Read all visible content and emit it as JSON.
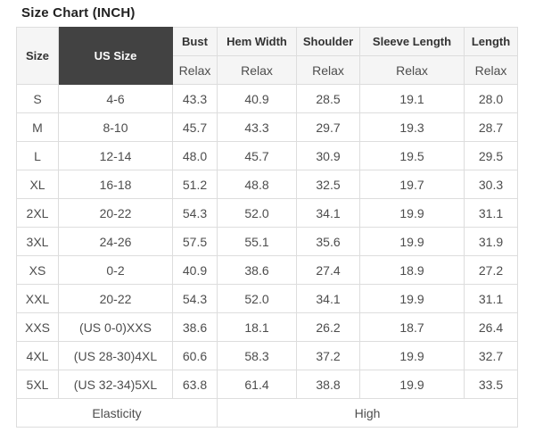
{
  "title": "Size Chart (INCH)",
  "colors": {
    "header_bg": "#f5f5f5",
    "dark_cell_bg": "#424242",
    "dark_cell_text": "#ffffff",
    "border": "#dddddd",
    "header_text": "#333333",
    "body_text": "#4d4d4d",
    "title_text": "#222222",
    "page_bg": "#ffffff"
  },
  "table": {
    "columns": [
      "Size",
      "US Size",
      "Bust",
      "Hem Width",
      "Shoulder",
      "Sleeve Length",
      "Length"
    ],
    "column_keys": [
      "size",
      "us_size",
      "bust",
      "hem_width",
      "shoulder",
      "sleeve_length",
      "length"
    ],
    "fit_row": [
      "Relax",
      "Relax",
      "Relax",
      "Relax",
      "Relax"
    ],
    "rows": [
      {
        "size": "S",
        "us_size": "4-6",
        "bust": "43.3",
        "hem_width": "40.9",
        "shoulder": "28.5",
        "sleeve_length": "19.1",
        "length": "28.0"
      },
      {
        "size": "M",
        "us_size": "8-10",
        "bust": "45.7",
        "hem_width": "43.3",
        "shoulder": "29.7",
        "sleeve_length": "19.3",
        "length": "28.7"
      },
      {
        "size": "L",
        "us_size": "12-14",
        "bust": "48.0",
        "hem_width": "45.7",
        "shoulder": "30.9",
        "sleeve_length": "19.5",
        "length": "29.5"
      },
      {
        "size": "XL",
        "us_size": "16-18",
        "bust": "51.2",
        "hem_width": "48.8",
        "shoulder": "32.5",
        "sleeve_length": "19.7",
        "length": "30.3"
      },
      {
        "size": "2XL",
        "us_size": "20-22",
        "bust": "54.3",
        "hem_width": "52.0",
        "shoulder": "34.1",
        "sleeve_length": "19.9",
        "length": "31.1"
      },
      {
        "size": "3XL",
        "us_size": "24-26",
        "bust": "57.5",
        "hem_width": "55.1",
        "shoulder": "35.6",
        "sleeve_length": "19.9",
        "length": "31.9"
      },
      {
        "size": "XS",
        "us_size": "0-2",
        "bust": "40.9",
        "hem_width": "38.6",
        "shoulder": "27.4",
        "sleeve_length": "18.9",
        "length": "27.2"
      },
      {
        "size": "XXL",
        "us_size": "20-22",
        "bust": "54.3",
        "hem_width": "52.0",
        "shoulder": "34.1",
        "sleeve_length": "19.9",
        "length": "31.1"
      },
      {
        "size": "XXS",
        "us_size": "(US 0-0)XXS",
        "bust": "38.6",
        "hem_width": "18.1",
        "shoulder": "26.2",
        "sleeve_length": "18.7",
        "length": "26.4"
      },
      {
        "size": "4XL",
        "us_size": "(US 28-30)4XL",
        "bust": "60.6",
        "hem_width": "58.3",
        "shoulder": "37.2",
        "sleeve_length": "19.9",
        "length": "32.7"
      },
      {
        "size": "5XL",
        "us_size": "(US 32-34)5XL",
        "bust": "63.8",
        "hem_width": "61.4",
        "shoulder": "38.8",
        "sleeve_length": "19.9",
        "length": "33.5"
      }
    ],
    "footer": {
      "label": "Elasticity",
      "value": "High"
    }
  }
}
